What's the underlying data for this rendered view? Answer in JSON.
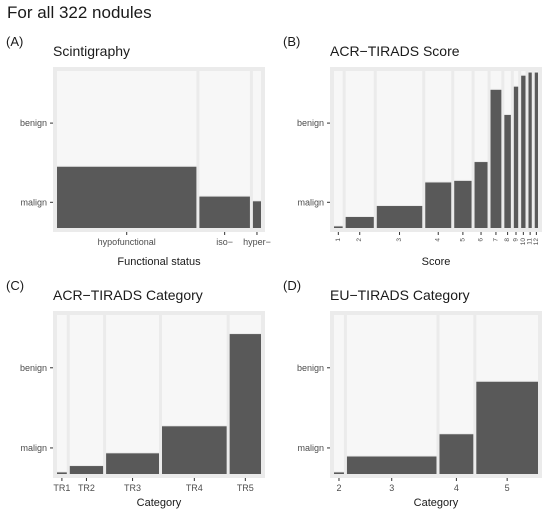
{
  "figure_title": "For all 322 nodules",
  "chart_data": [
    {
      "letter": "(A)",
      "type": "bar",
      "subtype": "mosaic",
      "title": "Scintigraphy",
      "xlabel": "Functional status",
      "ylabel": "",
      "y_categories": [
        "benign",
        "malign"
      ],
      "categories": [
        "hypofunctional",
        "iso−",
        "hyper−"
      ],
      "widths": [
        0.69,
        0.25,
        0.04
      ],
      "malign_fraction": [
        0.39,
        0.2,
        0.17
      ]
    },
    {
      "letter": "(B)",
      "type": "bar",
      "subtype": "mosaic",
      "title": "ACR−TIRADS Score",
      "xlabel": "Score",
      "ylabel": "",
      "y_categories": [
        "benign",
        "malign"
      ],
      "categories": [
        "1",
        "2",
        "3",
        "4",
        "5",
        "6",
        "7",
        "8",
        "9",
        "10",
        "11",
        "12"
      ],
      "widths": [
        0.04,
        0.13,
        0.21,
        0.12,
        0.08,
        0.06,
        0.05,
        0.03,
        0.02,
        0.02,
        0.015,
        0.015
      ],
      "malign_fraction": [
        0.01,
        0.07,
        0.14,
        0.29,
        0.3,
        0.42,
        0.88,
        0.72,
        0.9,
        0.97,
        0.99,
        0.99
      ]
    },
    {
      "letter": "(C)",
      "type": "bar",
      "subtype": "mosaic",
      "title": "ACR−TIRADS Category",
      "xlabel": "Category",
      "ylabel": "",
      "y_categories": [
        "benign",
        "malign"
      ],
      "categories": [
        "TR1",
        "TR2",
        "TR3",
        "TR4",
        "TR5"
      ],
      "widths": [
        0.05,
        0.17,
        0.27,
        0.33,
        0.16
      ],
      "malign_fraction": [
        0.01,
        0.05,
        0.13,
        0.3,
        0.88
      ]
    },
    {
      "letter": "(D)",
      "type": "bar",
      "subtype": "mosaic",
      "title": "EU−TIRADS Category",
      "xlabel": "Category",
      "ylabel": "",
      "y_categories": [
        "benign",
        "malign"
      ],
      "categories": [
        "2",
        "3",
        "4",
        "5"
      ],
      "widths": [
        0.05,
        0.45,
        0.17,
        0.31
      ],
      "malign_fraction": [
        0.01,
        0.11,
        0.25,
        0.58
      ]
    }
  ],
  "colors": {
    "panel_bg": "#ebebeb",
    "benign": "#f7f7f7",
    "malign": "#595959",
    "tick": "#333333"
  }
}
